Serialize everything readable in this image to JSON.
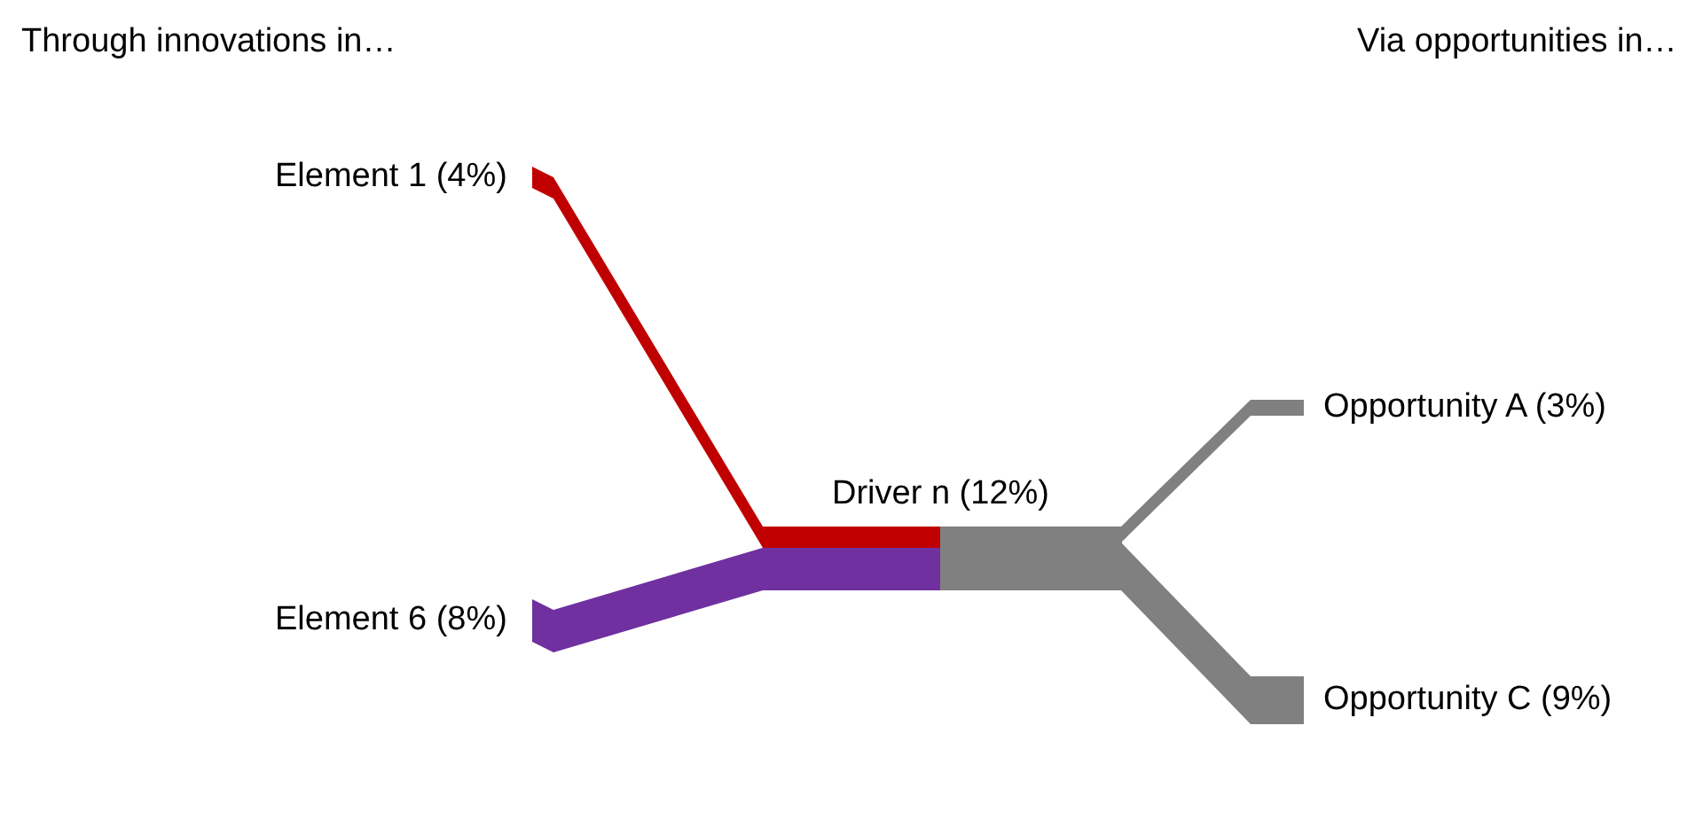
{
  "chart_data": {
    "type": "other",
    "categories": [
      "Element 1",
      "Element 6",
      "Driver n",
      "Opportunity A",
      "Opportunity C"
    ],
    "values": [
      4,
      8,
      12,
      3,
      9
    ],
    "value_labels": [
      "(4%)",
      "(8%)",
      "(12%)",
      "(3%)",
      "(9%)"
    ],
    "colors": [
      "#c00000",
      "#7030a0",
      "#808080",
      "#808080",
      "#808080"
    ],
    "annotations": [
      "Through innovations in…",
      "Via opportunities in…"
    ]
  }
}
